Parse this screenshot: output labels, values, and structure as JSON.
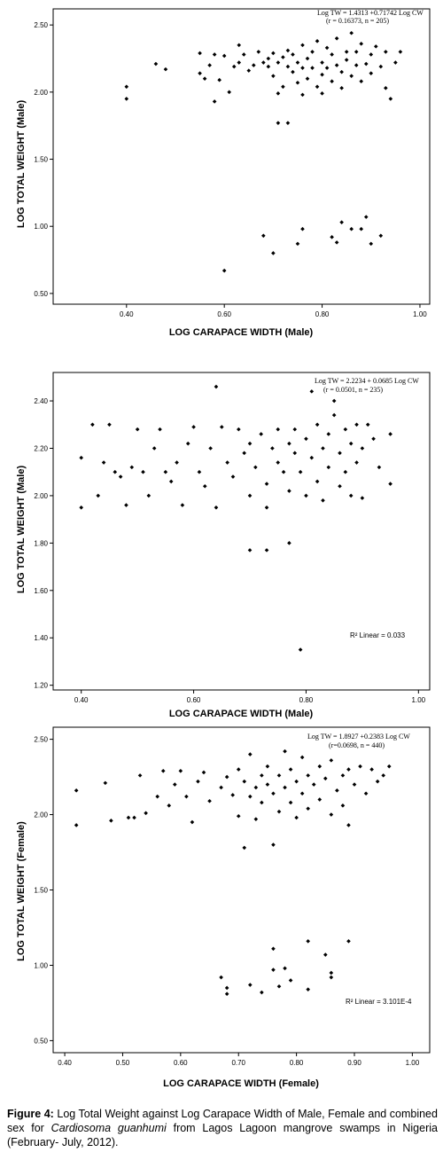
{
  "chart_data": [
    {
      "type": "scatter",
      "title": "",
      "xlabel": "LOG CARAPACE WIDTH (Male)",
      "ylabel": "LOG TOTAL WEIGHT (Male)",
      "xlim": [
        0.25,
        1.02
      ],
      "ylim": [
        0.42,
        2.62
      ],
      "xticks": [
        "0.40",
        "0.60",
        "0.80",
        "1.00"
      ],
      "xtick_values": [
        0.4,
        0.6,
        0.8,
        1.0
      ],
      "yticks": [
        "0.50",
        "1.00",
        "1.50",
        "2.00",
        "2.50"
      ],
      "ytick_values": [
        0.5,
        1.0,
        1.5,
        2.0,
        2.5
      ],
      "annotations": [
        "Log TW = 1.4313 +0.71742 Log CW",
        "(r = 0.16373, n = 205)"
      ],
      "grid": false,
      "series": [
        {
          "points": [
            [
              0.4,
              2.04
            ],
            [
              0.4,
              1.95
            ],
            [
              0.46,
              2.21
            ],
            [
              0.48,
              2.17
            ],
            [
              0.55,
              2.29
            ],
            [
              0.55,
              2.14
            ],
            [
              0.56,
              2.1
            ],
            [
              0.57,
              2.2
            ],
            [
              0.58,
              2.28
            ],
            [
              0.58,
              1.93
            ],
            [
              0.59,
              2.09
            ],
            [
              0.6,
              2.27
            ],
            [
              0.61,
              2.0
            ],
            [
              0.62,
              2.19
            ],
            [
              0.63,
              2.35
            ],
            [
              0.63,
              2.22
            ],
            [
              0.64,
              2.28
            ],
            [
              0.65,
              2.16
            ],
            [
              0.66,
              2.2
            ],
            [
              0.67,
              2.3
            ],
            [
              0.68,
              2.22
            ],
            [
              0.69,
              2.25
            ],
            [
              0.69,
              2.19
            ],
            [
              0.7,
              2.29
            ],
            [
              0.7,
              2.12
            ],
            [
              0.71,
              1.99
            ],
            [
              0.71,
              2.22
            ],
            [
              0.72,
              2.26
            ],
            [
              0.72,
              2.04
            ],
            [
              0.73,
              2.19
            ],
            [
              0.73,
              2.31
            ],
            [
              0.74,
              2.15
            ],
            [
              0.74,
              2.28
            ],
            [
              0.75,
              2.22
            ],
            [
              0.75,
              2.07
            ],
            [
              0.76,
              2.35
            ],
            [
              0.76,
              2.18
            ],
            [
              0.76,
              1.98
            ],
            [
              0.77,
              2.25
            ],
            [
              0.77,
              2.1
            ],
            [
              0.78,
              2.3
            ],
            [
              0.78,
              2.18
            ],
            [
              0.79,
              2.04
            ],
            [
              0.79,
              2.38
            ],
            [
              0.8,
              2.22
            ],
            [
              0.8,
              2.13
            ],
            [
              0.8,
              1.99
            ],
            [
              0.81,
              2.33
            ],
            [
              0.81,
              2.18
            ],
            [
              0.82,
              2.28
            ],
            [
              0.82,
              2.08
            ],
            [
              0.83,
              2.4
            ],
            [
              0.83,
              2.2
            ],
            [
              0.84,
              2.15
            ],
            [
              0.84,
              2.03
            ],
            [
              0.85,
              2.3
            ],
            [
              0.85,
              2.24
            ],
            [
              0.86,
              2.44
            ],
            [
              0.86,
              2.12
            ],
            [
              0.87,
              2.2
            ],
            [
              0.87,
              2.3
            ],
            [
              0.88,
              2.08
            ],
            [
              0.88,
              2.36
            ],
            [
              0.89,
              2.21
            ],
            [
              0.9,
              2.28
            ],
            [
              0.9,
              2.14
            ],
            [
              0.91,
              2.34
            ],
            [
              0.92,
              2.19
            ],
            [
              0.93,
              2.3
            ],
            [
              0.93,
              2.03
            ],
            [
              0.94,
              1.95
            ],
            [
              0.95,
              2.22
            ],
            [
              0.96,
              2.3
            ],
            [
              0.71,
              1.77
            ],
            [
              0.73,
              1.77
            ],
            [
              0.6,
              0.67
            ],
            [
              0.68,
              0.93
            ],
            [
              0.7,
              0.8
            ],
            [
              0.75,
              0.87
            ],
            [
              0.76,
              0.98
            ],
            [
              0.82,
              0.92
            ],
            [
              0.83,
              0.88
            ],
            [
              0.84,
              1.03
            ],
            [
              0.86,
              0.98
            ],
            [
              0.88,
              0.98
            ],
            [
              0.89,
              1.07
            ],
            [
              0.9,
              0.87
            ],
            [
              0.92,
              0.93
            ]
          ]
        }
      ]
    },
    {
      "type": "scatter",
      "title": "",
      "xlabel": "LOG CARAPACE WIDTH (Male)",
      "ylabel": "LOG TOTAL WEIGHT (Male)",
      "xlim": [
        0.35,
        1.02
      ],
      "ylim": [
        1.18,
        2.52
      ],
      "xticks": [
        "0.40",
        "0.60",
        "0.80",
        "1.00"
      ],
      "xtick_values": [
        0.4,
        0.6,
        0.8,
        1.0
      ],
      "yticks": [
        "1.20",
        "1.40",
        "1.60",
        "1.80",
        "2.00",
        "2.20",
        "2.40"
      ],
      "ytick_values": [
        1.2,
        1.4,
        1.6,
        1.8,
        2.0,
        2.2,
        2.4
      ],
      "annotations": [
        "Log TW = 2.2234 + 0.0685 Log CW",
        "(r = 0.0501, n = 235)",
        "R² Linear = 0.033"
      ],
      "grid": false,
      "series": [
        {
          "points": [
            [
              0.4,
              2.16
            ],
            [
              0.4,
              1.95
            ],
            [
              0.42,
              2.3
            ],
            [
              0.43,
              2.0
            ],
            [
              0.44,
              2.14
            ],
            [
              0.45,
              2.3
            ],
            [
              0.46,
              2.1
            ],
            [
              0.47,
              2.08
            ],
            [
              0.48,
              1.96
            ],
            [
              0.49,
              2.12
            ],
            [
              0.5,
              2.28
            ],
            [
              0.51,
              2.1
            ],
            [
              0.52,
              2.0
            ],
            [
              0.53,
              2.2
            ],
            [
              0.54,
              2.28
            ],
            [
              0.55,
              2.1
            ],
            [
              0.56,
              2.06
            ],
            [
              0.57,
              2.14
            ],
            [
              0.58,
              1.96
            ],
            [
              0.59,
              2.22
            ],
            [
              0.6,
              2.29
            ],
            [
              0.61,
              2.1
            ],
            [
              0.62,
              2.04
            ],
            [
              0.63,
              2.2
            ],
            [
              0.64,
              1.95
            ],
            [
              0.65,
              2.29
            ],
            [
              0.66,
              2.14
            ],
            [
              0.67,
              2.08
            ],
            [
              0.68,
              2.28
            ],
            [
              0.69,
              2.18
            ],
            [
              0.7,
              2.0
            ],
            [
              0.7,
              2.22
            ],
            [
              0.71,
              2.12
            ],
            [
              0.72,
              2.26
            ],
            [
              0.73,
              2.05
            ],
            [
              0.73,
              1.95
            ],
            [
              0.74,
              2.2
            ],
            [
              0.75,
              2.14
            ],
            [
              0.75,
              2.28
            ],
            [
              0.76,
              2.1
            ],
            [
              0.77,
              2.22
            ],
            [
              0.77,
              2.02
            ],
            [
              0.78,
              2.18
            ],
            [
              0.78,
              2.28
            ],
            [
              0.79,
              2.1
            ],
            [
              0.8,
              2.24
            ],
            [
              0.8,
              2.0
            ],
            [
              0.81,
              2.44
            ],
            [
              0.81,
              2.16
            ],
            [
              0.82,
              2.3
            ],
            [
              0.82,
              2.06
            ],
            [
              0.83,
              2.2
            ],
            [
              0.83,
              1.98
            ],
            [
              0.84,
              2.26
            ],
            [
              0.84,
              2.12
            ],
            [
              0.85,
              2.4
            ],
            [
              0.85,
              2.34
            ],
            [
              0.86,
              2.18
            ],
            [
              0.86,
              2.04
            ],
            [
              0.87,
              2.28
            ],
            [
              0.87,
              2.1
            ],
            [
              0.88,
              2.22
            ],
            [
              0.88,
              2.0
            ],
            [
              0.89,
              2.3
            ],
            [
              0.89,
              2.14
            ],
            [
              0.9,
              2.2
            ],
            [
              0.9,
              1.99
            ],
            [
              0.91,
              2.3
            ],
            [
              0.92,
              2.24
            ],
            [
              0.93,
              2.12
            ],
            [
              0.95,
              2.26
            ],
            [
              0.95,
              2.05
            ],
            [
              0.64,
              2.46
            ],
            [
              0.7,
              1.77
            ],
            [
              0.73,
              1.77
            ],
            [
              0.77,
              1.8
            ],
            [
              0.79,
              1.35
            ]
          ]
        }
      ]
    },
    {
      "type": "scatter",
      "title": "",
      "xlabel": "LOG CARAPACE WIDTH (Female)",
      "ylabel": "LOG TOTAL WEIGHT (Female)",
      "xlim": [
        0.38,
        1.03
      ],
      "ylim": [
        0.42,
        2.58
      ],
      "xticks": [
        "0.40",
        "0.50",
        "0.60",
        "0.70",
        "0.80",
        "0.90",
        "1.00"
      ],
      "xtick_values": [
        0.4,
        0.5,
        0.6,
        0.7,
        0.8,
        0.9,
        1.0
      ],
      "yticks": [
        "0.50",
        "1.00",
        "1.50",
        "2.00",
        "2.50"
      ],
      "ytick_values": [
        0.5,
        1.0,
        1.5,
        2.0,
        2.5
      ],
      "annotations": [
        "Log TW = 1.8927 +0.2383 Log CW",
        "(r=0.0698, n = 440)",
        "R² Linear = 3.101E-4"
      ],
      "grid": false,
      "series": [
        {
          "points": [
            [
              0.42,
              2.16
            ],
            [
              0.42,
              1.93
            ],
            [
              0.47,
              2.21
            ],
            [
              0.48,
              1.96
            ],
            [
              0.51,
              1.98
            ],
            [
              0.52,
              1.98
            ],
            [
              0.53,
              2.26
            ],
            [
              0.54,
              2.01
            ],
            [
              0.56,
              2.12
            ],
            [
              0.57,
              2.29
            ],
            [
              0.58,
              2.06
            ],
            [
              0.59,
              2.2
            ],
            [
              0.6,
              2.29
            ],
            [
              0.61,
              2.12
            ],
            [
              0.62,
              1.95
            ],
            [
              0.63,
              2.22
            ],
            [
              0.64,
              2.28
            ],
            [
              0.65,
              2.09
            ],
            [
              0.67,
              2.18
            ],
            [
              0.68,
              2.25
            ],
            [
              0.69,
              2.13
            ],
            [
              0.7,
              2.3
            ],
            [
              0.7,
              1.99
            ],
            [
              0.71,
              2.22
            ],
            [
              0.71,
              1.78
            ],
            [
              0.72,
              2.12
            ],
            [
              0.72,
              2.4
            ],
            [
              0.73,
              2.18
            ],
            [
              0.73,
              1.97
            ],
            [
              0.74,
              2.26
            ],
            [
              0.74,
              2.08
            ],
            [
              0.75,
              2.2
            ],
            [
              0.75,
              2.32
            ],
            [
              0.76,
              1.8
            ],
            [
              0.76,
              2.14
            ],
            [
              0.77,
              2.26
            ],
            [
              0.77,
              2.02
            ],
            [
              0.78,
              2.42
            ],
            [
              0.78,
              2.18
            ],
            [
              0.79,
              2.08
            ],
            [
              0.79,
              2.3
            ],
            [
              0.8,
              2.22
            ],
            [
              0.8,
              1.98
            ],
            [
              0.81,
              2.38
            ],
            [
              0.81,
              2.14
            ],
            [
              0.82,
              2.26
            ],
            [
              0.82,
              2.04
            ],
            [
              0.83,
              2.2
            ],
            [
              0.84,
              2.32
            ],
            [
              0.84,
              2.1
            ],
            [
              0.85,
              2.24
            ],
            [
              0.86,
              2.0
            ],
            [
              0.86,
              2.36
            ],
            [
              0.87,
              2.16
            ],
            [
              0.88,
              2.26
            ],
            [
              0.88,
              2.06
            ],
            [
              0.89,
              2.3
            ],
            [
              0.89,
              1.93
            ],
            [
              0.9,
              2.2
            ],
            [
              0.91,
              2.32
            ],
            [
              0.92,
              2.14
            ],
            [
              0.93,
              2.3
            ],
            [
              0.94,
              2.22
            ],
            [
              0.95,
              2.26
            ],
            [
              0.96,
              2.32
            ],
            [
              0.67,
              0.92
            ],
            [
              0.68,
              0.85
            ],
            [
              0.68,
              0.81
            ],
            [
              0.72,
              0.87
            ],
            [
              0.74,
              0.82
            ],
            [
              0.76,
              1.11
            ],
            [
              0.76,
              0.97
            ],
            [
              0.77,
              0.86
            ],
            [
              0.78,
              0.98
            ],
            [
              0.79,
              0.9
            ],
            [
              0.82,
              1.16
            ],
            [
              0.82,
              0.84
            ],
            [
              0.85,
              1.07
            ],
            [
              0.86,
              0.95
            ],
            [
              0.86,
              0.92
            ],
            [
              0.89,
              1.16
            ]
          ]
        }
      ]
    }
  ],
  "caption": {
    "label": "Figure 4:",
    "text_before_species": "Log Total Weight against Log Carapace Width of Male, Female and combined sex for",
    "species": "Cardiosoma guanhumi",
    "text_after_species": "from Lagos Lagoon mangrove swamps in Nigeria (February- July, 2012)."
  }
}
